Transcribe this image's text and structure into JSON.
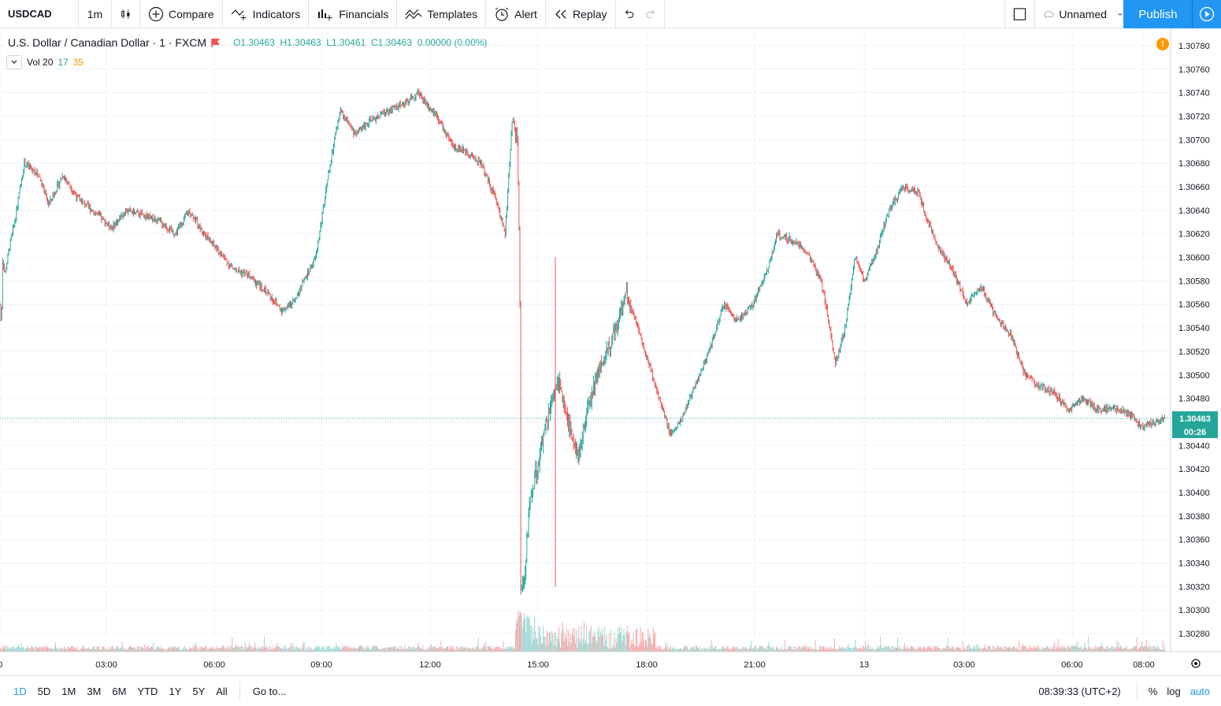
{
  "toolbar": {
    "symbol": "USDCAD",
    "interval": "1m",
    "compare": "Compare",
    "indicators": "Indicators",
    "financials": "Financials",
    "templates": "Templates",
    "alert": "Alert",
    "replay": "Replay",
    "layout_name": "Unnamed",
    "publish": "Publish"
  },
  "legend": {
    "title": "U.S. Dollar / Canadian Dollar · 1 · FXCM",
    "o_label": "O",
    "o": "1.30463",
    "h_label": "H",
    "h": "1.30463",
    "l_label": "L",
    "l": "1.30461",
    "c_label": "C",
    "c": "1.30463",
    "change": "0.00000 (0.00%)",
    "vol_label": "Vol 20",
    "vol_a": "17",
    "vol_b": "35"
  },
  "price_axis": {
    "ticks": [
      "1.30780",
      "1.30760",
      "1.30740",
      "1.30720",
      "1.30700",
      "1.30680",
      "1.30660",
      "1.30640",
      "1.30620",
      "1.30600",
      "1.30580",
      "1.30560",
      "1.30540",
      "1.30520",
      "1.30500",
      "1.30480",
      "1.30460",
      "1.30440",
      "1.30420",
      "1.30400",
      "1.30380",
      "1.30360",
      "1.30340",
      "1.30320",
      "1.30300",
      "1.30280"
    ],
    "last_price": "1.30463",
    "countdown": "00:26"
  },
  "time_axis": {
    "ticks": [
      "0",
      "03:00",
      "06:00",
      "09:00",
      "12:00",
      "15:00",
      "18:00",
      "21:00",
      "13",
      "03:00",
      "06:00",
      "08:00"
    ]
  },
  "bottom": {
    "ranges": [
      "1D",
      "5D",
      "1M",
      "3M",
      "6M",
      "YTD",
      "1Y",
      "5Y",
      "All"
    ],
    "goto": "Go to...",
    "clock": "08:39:33 (UTC+2)",
    "percent": "%",
    "log": "log",
    "auto": "auto"
  },
  "colors": {
    "up": "#26a69a",
    "down": "#ef5350",
    "accent": "#2196f3",
    "grid": "#f0f3fa"
  },
  "chart_data": {
    "type": "candlestick",
    "ylim": [
      1.3027,
      1.3079
    ],
    "last": 1.30463,
    "path": [
      [
        0,
        1.3056
      ],
      [
        0.03,
        1.3054
      ],
      [
        0.05,
        1.306
      ],
      [
        0.1,
        1.30585
      ],
      [
        0.2,
        1.3061
      ],
      [
        0.3,
        1.3063
      ],
      [
        0.5,
        1.3068
      ],
      [
        0.8,
        1.3067
      ],
      [
        1,
        1.30645
      ],
      [
        1.3,
        1.3067
      ],
      [
        1.6,
        1.3065
      ],
      [
        1.9,
        1.3064
      ],
      [
        2.3,
        1.30625
      ],
      [
        2.6,
        1.3064
      ],
      [
        3.0,
        1.30635
      ],
      [
        3.3,
        1.3063
      ],
      [
        3.6,
        1.3062
      ],
      [
        3.9,
        1.3064
      ],
      [
        4.2,
        1.3062
      ],
      [
        4.5,
        1.30605
      ],
      [
        4.8,
        1.3059
      ],
      [
        5.1,
        1.30585
      ],
      [
        5.5,
        1.3057
      ],
      [
        5.8,
        1.30555
      ],
      [
        6.0,
        1.3056
      ],
      [
        6.2,
        1.30575
      ],
      [
        6.5,
        1.306
      ],
      [
        6.8,
        1.3068
      ],
      [
        7.0,
        1.30725
      ],
      [
        7.3,
        1.30705
      ],
      [
        7.6,
        1.30715
      ],
      [
        8.0,
        1.30725
      ],
      [
        8.3,
        1.3073
      ],
      [
        8.6,
        1.3074
      ],
      [
        9.0,
        1.3072
      ],
      [
        9.3,
        1.30695
      ],
      [
        9.6,
        1.3069
      ],
      [
        9.9,
        1.3068
      ],
      [
        10.2,
        1.3065
      ],
      [
        10.4,
        1.3062
      ],
      [
        10.55,
        1.3072
      ],
      [
        10.65,
        1.307
      ],
      [
        10.7,
        1.306
      ],
      [
        10.72,
        1.3032
      ],
      [
        10.8,
        1.3033
      ],
      [
        10.9,
        1.3039
      ],
      [
        11.1,
        1.3043
      ],
      [
        11.3,
        1.3047
      ],
      [
        11.5,
        1.30495
      ],
      [
        11.7,
        1.3046
      ],
      [
        11.9,
        1.3043
      ],
      [
        12.1,
        1.3047
      ],
      [
        12.3,
        1.305
      ],
      [
        12.6,
        1.3053
      ],
      [
        12.9,
        1.3057
      ],
      [
        13.2,
        1.3053
      ],
      [
        13.5,
        1.3049
      ],
      [
        13.8,
        1.3045
      ],
      [
        14.0,
        1.3046
      ],
      [
        14.3,
        1.3049
      ],
      [
        14.6,
        1.3052
      ],
      [
        14.9,
        1.3056
      ],
      [
        15.2,
        1.30545
      ],
      [
        15.5,
        1.3056
      ],
      [
        15.8,
        1.3059
      ],
      [
        16.0,
        1.3062
      ],
      [
        16.3,
        1.30615
      ],
      [
        16.6,
        1.30605
      ],
      [
        16.9,
        1.3058
      ],
      [
        17.0,
        1.3056
      ],
      [
        17.2,
        1.3051
      ],
      [
        17.4,
        1.3054
      ],
      [
        17.6,
        1.306
      ],
      [
        17.8,
        1.3058
      ],
      [
        18.0,
        1.306
      ],
      [
        18.3,
        1.3064
      ],
      [
        18.6,
        1.3066
      ],
      [
        18.9,
        1.30655
      ],
      [
        19.1,
        1.3063
      ],
      [
        19.3,
        1.3061
      ],
      [
        19.6,
        1.3059
      ],
      [
        19.9,
        1.3056
      ],
      [
        20.2,
        1.30575
      ],
      [
        20.5,
        1.3055
      ],
      [
        20.8,
        1.30535
      ],
      [
        21.1,
        1.305
      ],
      [
        21.4,
        1.3049
      ],
      [
        21.7,
        1.30485
      ],
      [
        22.0,
        1.3047
      ],
      [
        22.3,
        1.3048
      ],
      [
        22.6,
        1.3047
      ],
      [
        22.9,
        1.30472
      ],
      [
        23.2,
        1.30468
      ],
      [
        23.5,
        1.30455
      ],
      [
        23.8,
        1.3046
      ],
      [
        24.0,
        1.30463
      ]
    ]
  }
}
